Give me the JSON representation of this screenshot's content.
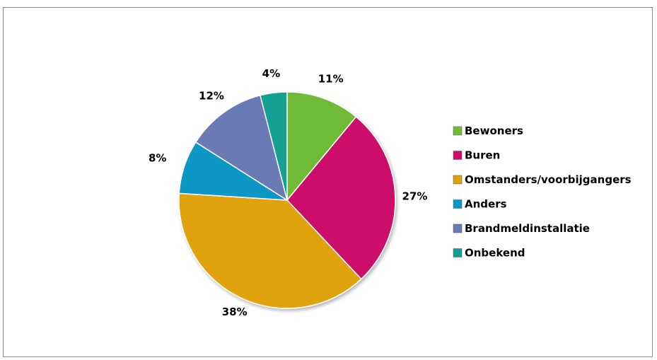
{
  "chart_data": {
    "type": "pie",
    "legend_position": "right",
    "slices": [
      {
        "label": "Bewoners",
        "value": 11,
        "value_label": "11%",
        "color": "#70bb34"
      },
      {
        "label": "Buren",
        "value": 27,
        "value_label": "27%",
        "color": "#cc0f69"
      },
      {
        "label": "Omstanders/voorbijgangers",
        "value": 38,
        "value_label": "38%",
        "color": "#e0a20b"
      },
      {
        "label": "Anders",
        "value": 8,
        "value_label": "8%",
        "color": "#0797c4"
      },
      {
        "label": "Brandmeldinstallatie",
        "value": 12,
        "value_label": "12%",
        "color": "#6a7ab5"
      },
      {
        "label": "Onbekend",
        "value": 4,
        "value_label": "4%",
        "color": "#13a091"
      }
    ]
  }
}
